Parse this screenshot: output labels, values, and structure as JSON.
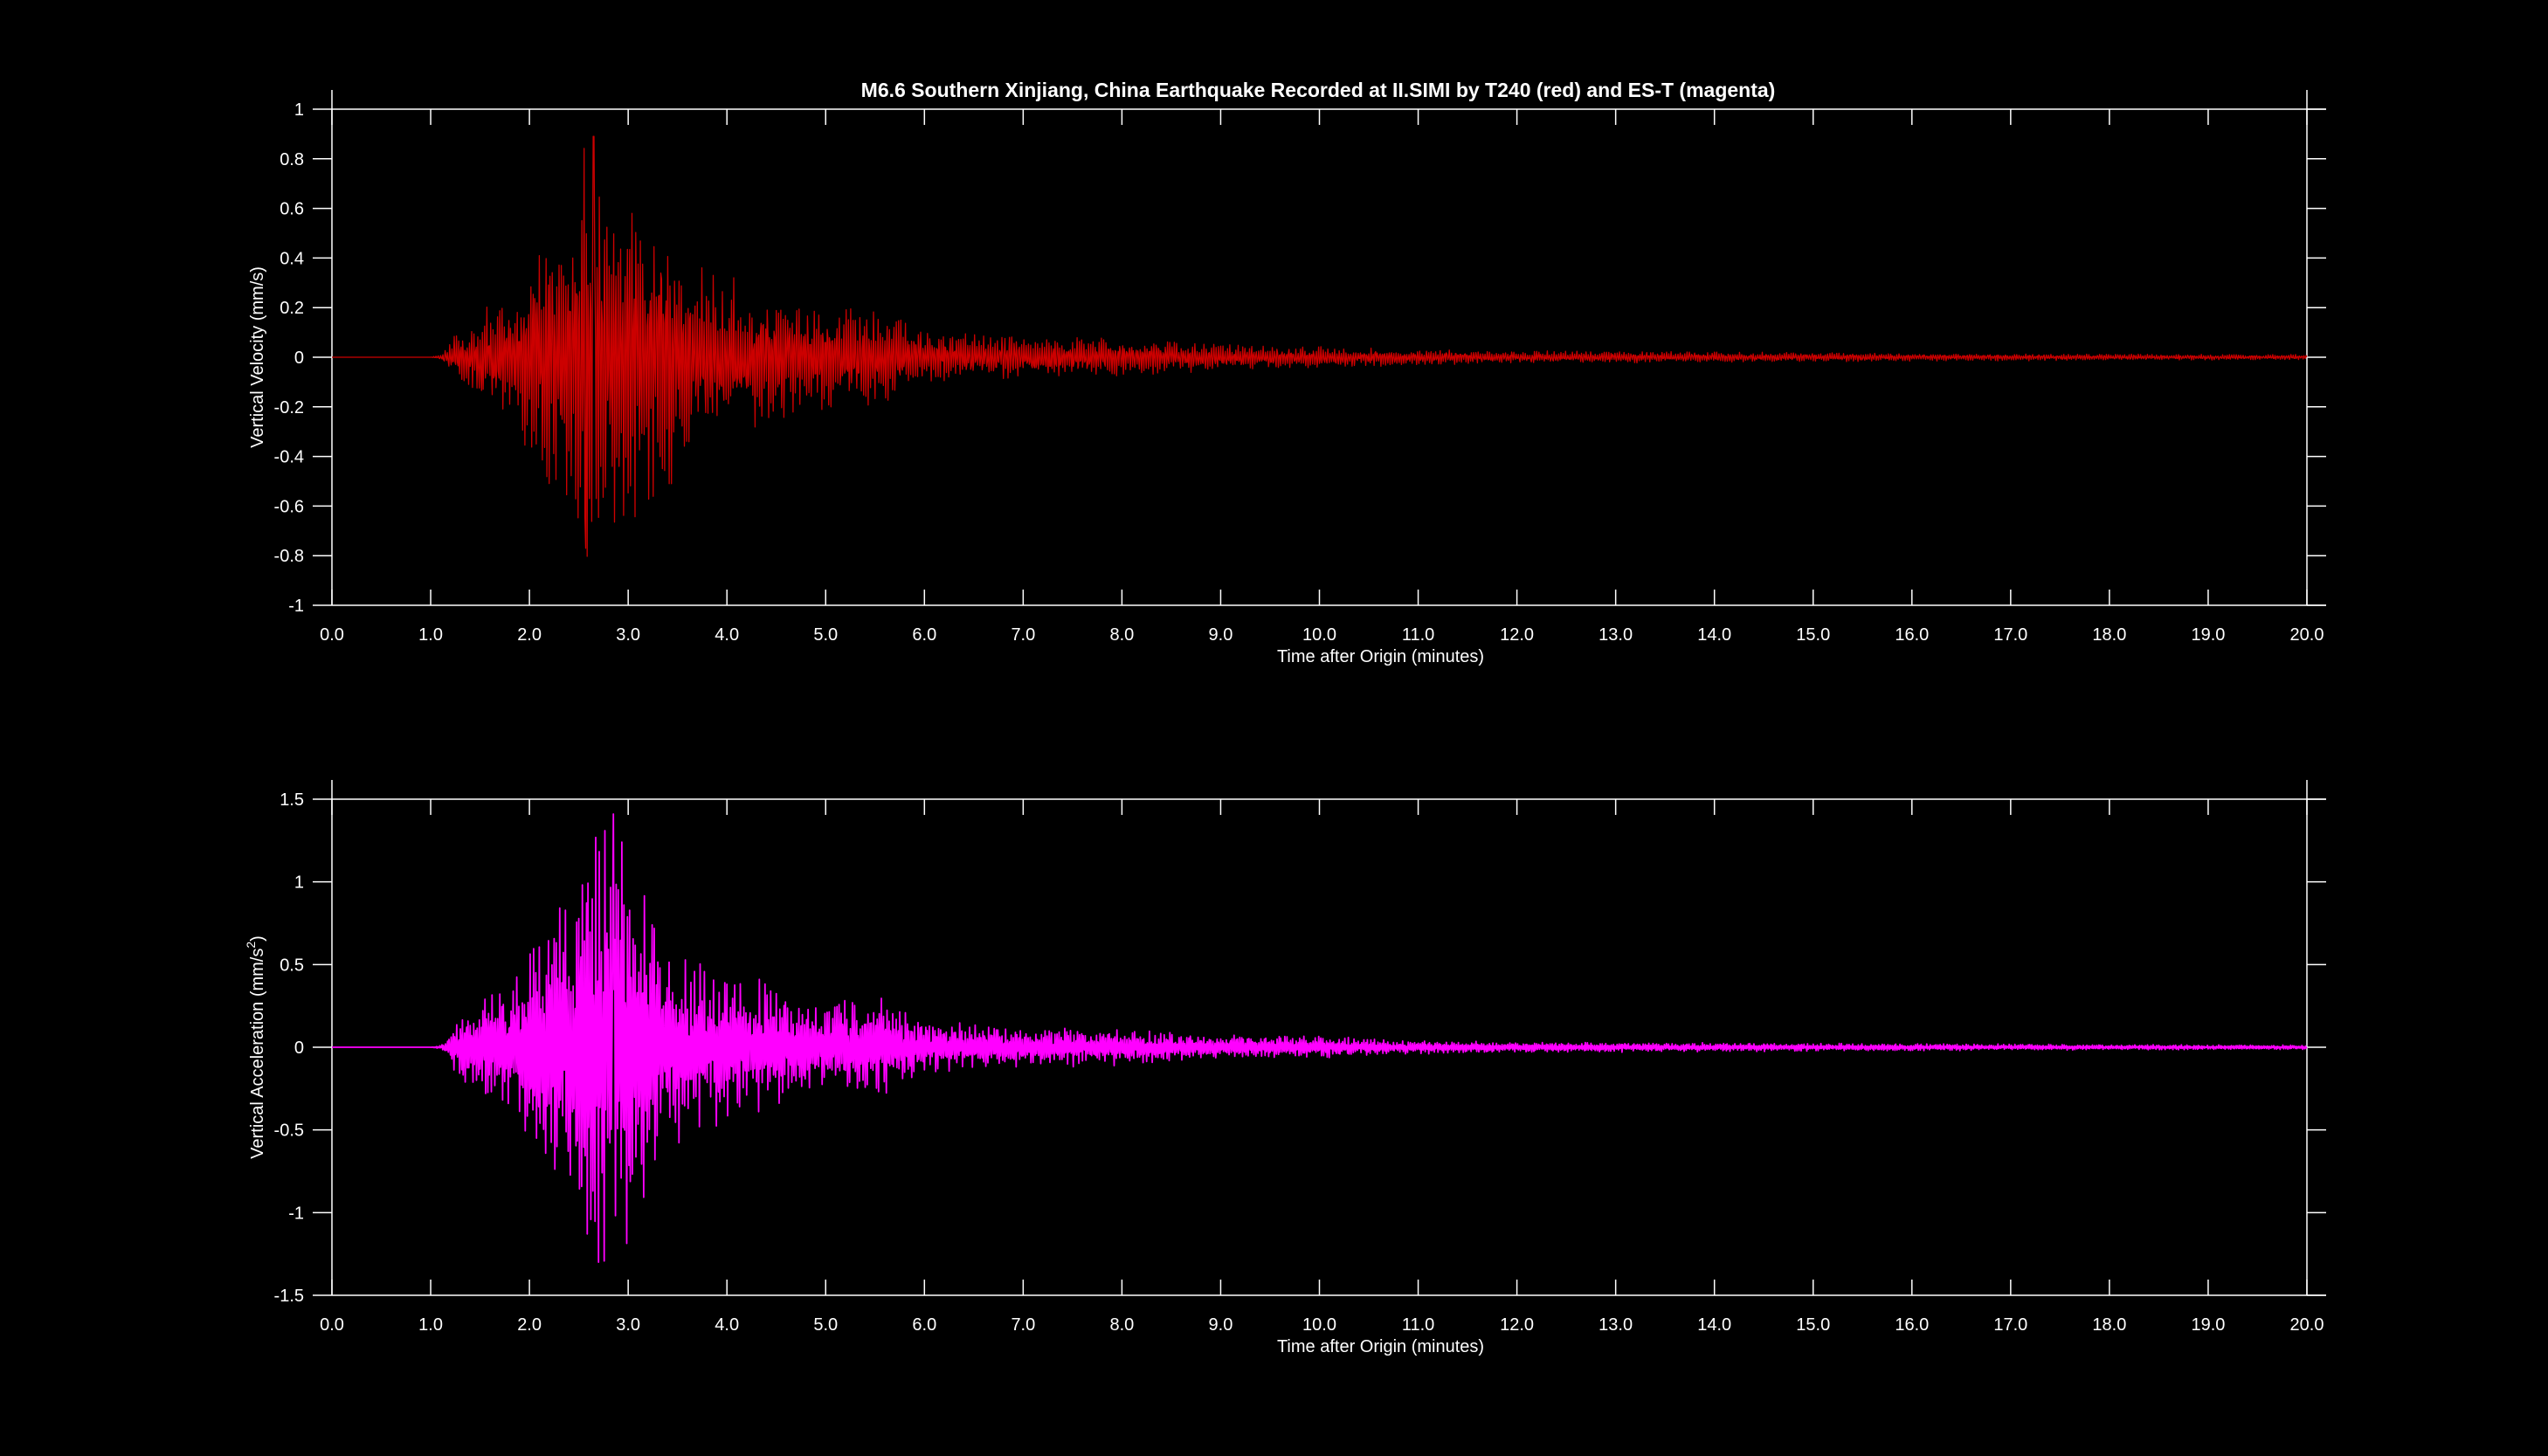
{
  "title": "M6.6 Southern Xinjiang, China Earthquake Recorded at II.SIMI by T240 (red) and ES-T (magenta)",
  "colors": {
    "background": "#000000",
    "axes": "#ffffff",
    "t240": "#cc0000",
    "est": "#ff00ff"
  },
  "chart_data": [
    {
      "type": "line",
      "instrument": "T240",
      "trace_color": "red",
      "xlabel": "Time after Origin (minutes)",
      "ylabel": "Vertical Velocity (mm/s)",
      "xlim": [
        0,
        20
      ],
      "ylim": [
        -1,
        1
      ],
      "xticks": [
        "0.0",
        "1.0",
        "2.0",
        "3.0",
        "4.0",
        "5.0",
        "6.0",
        "7.0",
        "8.0",
        "9.0",
        "10.0",
        "11.0",
        "12.0",
        "13.0",
        "14.0",
        "15.0",
        "16.0",
        "17.0",
        "18.0",
        "19.0",
        "20.0"
      ],
      "yticks": [
        "1",
        "0.8",
        "0.6",
        "0.4",
        "0.2",
        "0",
        "-0.2",
        "-0.4",
        "-0.6",
        "-0.8",
        "-1"
      ],
      "ytick_values": [
        1,
        0.8,
        0.6,
        0.4,
        0.2,
        0,
        -0.2,
        -0.4,
        -0.6,
        -0.8,
        -1
      ],
      "envelope": {
        "x": [
          0,
          1.0,
          1.1,
          1.2,
          1.5,
          1.8,
          2.1,
          2.4,
          2.6,
          2.8,
          3.0,
          3.3,
          3.6,
          4.0,
          4.5,
          5.0,
          5.5,
          6.0,
          7.0,
          8.0,
          9.0,
          10.0,
          11.0,
          12.0,
          14.0,
          16.0,
          18.0,
          20.0
        ],
        "amplitude": [
          0,
          0,
          0.01,
          0.06,
          0.2,
          0.22,
          0.45,
          0.55,
          0.85,
          0.65,
          0.6,
          0.55,
          0.4,
          0.3,
          0.25,
          0.2,
          0.18,
          0.1,
          0.08,
          0.07,
          0.05,
          0.04,
          0.03,
          0.025,
          0.02,
          0.015,
          0.012,
          0.01
        ]
      },
      "peaks": {
        "max": 0.89,
        "max_time": 2.65,
        "min": -0.77,
        "min_time": 2.57
      }
    },
    {
      "type": "line",
      "instrument": "ES-T",
      "trace_color": "magenta",
      "xlabel": "Time after Origin (minutes)",
      "ylabel": "Vertical Acceleration (mm/s2)",
      "ylabel_main": "Vertical Acceleration (mm/s",
      "ylabel_sup": "2",
      "ylabel_end": ")",
      "xlim": [
        0,
        20
      ],
      "ylim": [
        -1.5,
        1.5
      ],
      "xticks": [
        "0.0",
        "1.0",
        "2.0",
        "3.0",
        "4.0",
        "5.0",
        "6.0",
        "7.0",
        "8.0",
        "9.0",
        "10.0",
        "11.0",
        "12.0",
        "13.0",
        "14.0",
        "15.0",
        "16.0",
        "17.0",
        "18.0",
        "19.0",
        "20.0"
      ],
      "yticks": [
        "1.5",
        "1",
        "0.5",
        "0",
        "-0.5",
        "-1",
        "-1.5"
      ],
      "ytick_values": [
        1.5,
        1,
        0.5,
        0,
        -0.5,
        -1,
        -1.5
      ],
      "envelope": {
        "x": [
          0,
          1.0,
          1.1,
          1.2,
          1.5,
          1.8,
          2.1,
          2.4,
          2.6,
          2.8,
          3.0,
          3.3,
          3.6,
          4.0,
          4.5,
          5.0,
          5.5,
          6.0,
          7.0,
          8.0,
          9.0,
          10.0,
          11.0,
          12.0,
          14.0,
          16.0,
          18.0,
          20.0
        ],
        "amplitude": [
          0,
          0,
          0.01,
          0.1,
          0.32,
          0.35,
          0.7,
          0.9,
          1.25,
          1.3,
          1.2,
          0.7,
          0.5,
          0.45,
          0.35,
          0.25,
          0.3,
          0.15,
          0.12,
          0.1,
          0.07,
          0.06,
          0.04,
          0.03,
          0.025,
          0.02,
          0.015,
          0.012
        ]
      },
      "peaks": {
        "max": 1.41,
        "max_time": 2.85,
        "min": -1.3,
        "min_time": 2.7
      }
    }
  ]
}
